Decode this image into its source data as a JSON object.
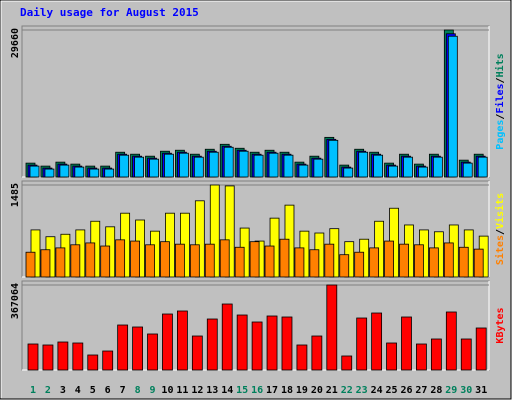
{
  "chart_data": [
    {
      "type": "bar",
      "title": "Daily usage for August 2015",
      "ylim": [
        0,
        29660
      ],
      "yticks": [
        29660
      ],
      "legend_separator": "/",
      "series": [
        {
          "name": "Hits",
          "color": "#00805C",
          "values": [
            2800,
            2200,
            3000,
            2600,
            2200,
            2200,
            5000,
            4600,
            4200,
            5200,
            5400,
            4600,
            5600,
            6600,
            5800,
            5000,
            5400,
            5000,
            3000,
            4200,
            8000,
            2400,
            5600,
            5000,
            2800,
            4600,
            2600,
            4600,
            29660,
            3400,
            4600
          ]
        },
        {
          "name": "Files",
          "color": "#0000FF",
          "values": [
            2400,
            1800,
            2600,
            2200,
            1800,
            1800,
            4600,
            4200,
            3800,
            4800,
            5000,
            4200,
            5200,
            6200,
            5400,
            4600,
            5000,
            4600,
            2600,
            3800,
            7600,
            2000,
            5200,
            4600,
            2400,
            4200,
            2200,
            4200,
            28900,
            3000,
            4200
          ]
        },
        {
          "name": "Pages",
          "color": "#00C0FF",
          "values": [
            2200,
            1600,
            2400,
            2000,
            1600,
            1600,
            4400,
            4000,
            3600,
            4600,
            4800,
            4000,
            5000,
            6000,
            5200,
            4400,
            4800,
            4400,
            2400,
            3600,
            7400,
            1800,
            5000,
            4400,
            2200,
            4000,
            2000,
            4000,
            28400,
            2800,
            4000
          ]
        }
      ]
    },
    {
      "type": "bar",
      "ylim": [
        0,
        1485
      ],
      "yticks": [
        1485
      ],
      "legend_separator": "/",
      "series": [
        {
          "name": "Visits",
          "color": "#FFFF00",
          "values": [
            760,
            650,
            690,
            760,
            900,
            810,
            1030,
            920,
            740,
            1030,
            1030,
            1230,
            1485,
            1470,
            790,
            580,
            950,
            1160,
            740,
            710,
            780,
            570,
            610,
            900,
            1110,
            840,
            760,
            730,
            840,
            760,
            660
          ]
        },
        {
          "name": "Sites",
          "color": "#FF8000",
          "values": [
            400,
            440,
            470,
            520,
            550,
            500,
            600,
            580,
            520,
            570,
            530,
            520,
            530,
            600,
            480,
            570,
            500,
            610,
            470,
            440,
            530,
            360,
            400,
            470,
            580,
            530,
            520,
            470,
            550,
            480,
            450
          ]
        }
      ]
    },
    {
      "type": "bar",
      "ylim": [
        0,
        367064
      ],
      "yticks": [
        367064
      ],
      "categories": [
        "1",
        "2",
        "3",
        "4",
        "5",
        "6",
        "7",
        "8",
        "9",
        "10",
        "11",
        "12",
        "13",
        "14",
        "15",
        "16",
        "17",
        "18",
        "19",
        "20",
        "21",
        "22",
        "23",
        "24",
        "25",
        "26",
        "27",
        "28",
        "29",
        "30",
        "31"
      ],
      "category_colors": [
        "#00805C",
        "#00805C",
        "#000000",
        "#000000",
        "#000000",
        "#000000",
        "#000000",
        "#00805C",
        "#00805C",
        "#000000",
        "#000000",
        "#000000",
        "#000000",
        "#000000",
        "#00805C",
        "#00805C",
        "#000000",
        "#000000",
        "#000000",
        "#000000",
        "#000000",
        "#00805C",
        "#00805C",
        "#000000",
        "#000000",
        "#000000",
        "#000000",
        "#000000",
        "#00805C",
        "#00805C",
        "#000000"
      ],
      "series": [
        {
          "name": "KBytes",
          "color": "#FF0000",
          "values": [
            112300,
            108000,
            120900,
            116600,
            64800,
            82000,
            194300,
            185700,
            155500,
            241800,
            254800,
            146800,
            220200,
            285000,
            237500,
            207300,
            233200,
            228900,
            108000,
            146800,
            367064,
            60500,
            224500,
            246100,
            116600,
            228900,
            112300,
            133900,
            250500,
            133900,
            181400
          ]
        }
      ]
    }
  ]
}
